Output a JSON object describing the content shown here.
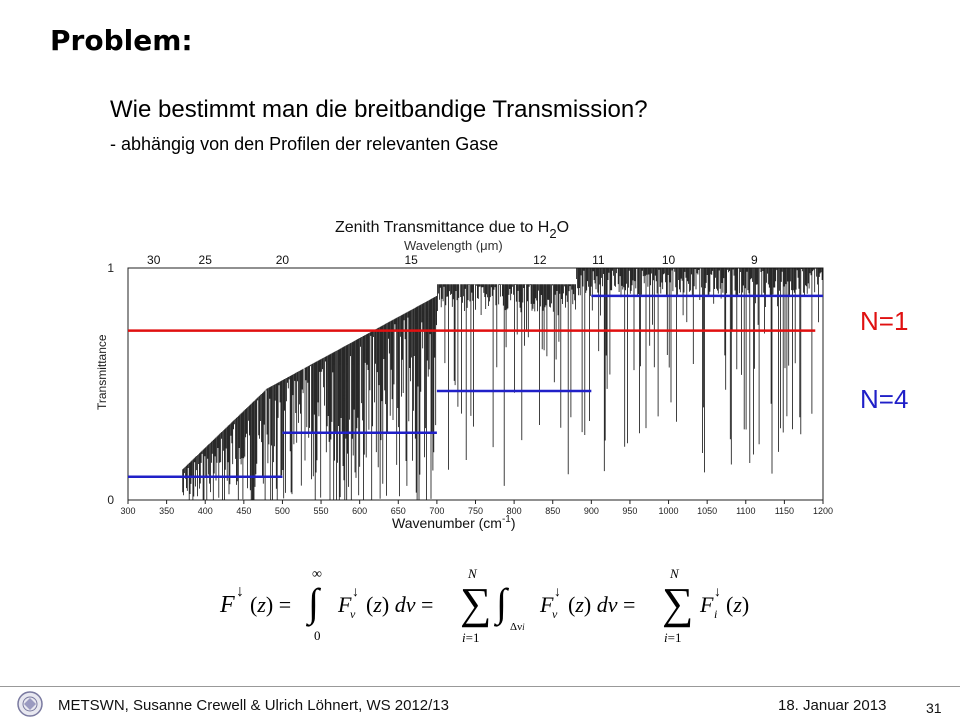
{
  "slide": {
    "title": "Problem:",
    "question": "Wie bestimmt man die breitbandige Transmission?",
    "subpoint": "- abhängig von den Profilen der relevanten Gase"
  },
  "chart_data": {
    "type": "line",
    "title": "Zenith Transmittance due to H",
    "title_sub": "2",
    "title_suffix": "O",
    "top_axis_label": "Wavelength (",
    "top_axis_unit": "μm)",
    "xlabel": "Wavenumber (cm",
    "xlabel_sup": "-1",
    "xlabel_suffix": ")",
    "ylabel": "Transmittance",
    "xlim": [
      300,
      1200
    ],
    "ylim": [
      0,
      1
    ],
    "y_ticks": [
      "1",
      "0"
    ],
    "x_ticks": [
      300,
      350,
      400,
      450,
      500,
      550,
      600,
      650,
      700,
      750,
      800,
      850,
      900,
      950,
      1000,
      1050,
      1100,
      1150,
      1200
    ],
    "wavelength_ticks": [
      30,
      25,
      20,
      15,
      12,
      11,
      10,
      9
    ],
    "overlays": [
      {
        "name": "N=1",
        "color": "#e01010",
        "x_range": [
          300,
          1190
        ],
        "value": 0.73
      },
      {
        "name": "N=4",
        "color": "#2020c8",
        "segments": [
          {
            "x_range": [
              300,
              500
            ],
            "value": 0.1
          },
          {
            "x_range": [
              500,
              700
            ],
            "value": 0.29
          },
          {
            "x_range": [
              700,
              900
            ],
            "value": 0.47
          },
          {
            "x_range": [
              900,
              1200
            ],
            "value": 0.88
          }
        ]
      }
    ]
  },
  "labels": {
    "n1": "N=1",
    "n4": "N=4"
  },
  "footer": {
    "text": "METSWN, Susanne Crewell & Ulrich Löhnert,  WS 2012/13",
    "date": "18. Januar  2013",
    "page": "31"
  },
  "colors": {
    "n1": "#e01010",
    "n4": "#2020c8"
  }
}
